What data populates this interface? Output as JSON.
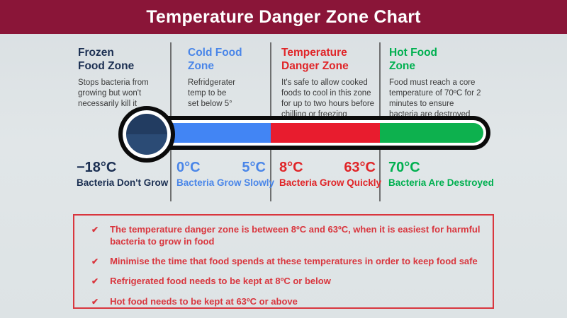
{
  "colors": {
    "header_bg": "#8A1538",
    "background": "#dde3e5",
    "navy": "#1b2f52",
    "blue": "#4a86e8",
    "red": "#e02528",
    "green": "#00b050",
    "tube_blue": "#4285f4",
    "tube_red": "#e81c2e",
    "tube_green": "#0db14e",
    "bulb_navy_top": "#223c61",
    "bulb_navy_bottom": "#2b4b75",
    "note_red": "#d9363e",
    "description_text": "#3b3b3b"
  },
  "header": {
    "title": "Temperature Danger Zone Chart"
  },
  "zones": [
    {
      "name": "frozen-food-zone",
      "title": "Frozen\nFood Zone",
      "description": "Stops bacteria from\ngrowing but won't\nnecessarily kill it",
      "temp_start": "−18°C",
      "temp_end": "",
      "caption": "Bacteria Don't Grow",
      "accent": "#1b2f52"
    },
    {
      "name": "cold-food-zone",
      "title": "Cold Food\nZone",
      "description": "Refridgerater\ntemp to be\nset below 5°",
      "temp_start": "0°C",
      "temp_end": "5°C",
      "caption": "Bacteria Grow Slowly",
      "accent": "#4a86e8"
    },
    {
      "name": "temperature-danger-zone",
      "title": "Temperature\nDanger Zone",
      "description": "It's safe to allow cooked\nfoods to cool in this zone\nfor up to two hours before\nchilling or freezing",
      "temp_start": "8°C",
      "temp_end": "63°C",
      "caption": "Bacteria Grow Quickly",
      "accent": "#e02528"
    },
    {
      "name": "hot-food-zone",
      "title": "Hot Food\nZone",
      "description": "Food must reach a core\ntemperature of 70ºC for 2\nminutes to ensure\nbacteria are destroyed",
      "temp_start": "70°C",
      "temp_end": "",
      "caption": "Bacteria Are Destroyed",
      "accent": "#00b050"
    }
  ],
  "thermometer": {
    "segments": [
      {
        "name": "cold",
        "color": "#4285f4"
      },
      {
        "name": "danger",
        "color": "#e81c2e"
      },
      {
        "name": "hot",
        "color": "#0db14e"
      }
    ]
  },
  "notes": [
    "The temperature danger zone is between 8ºC and 63ºC, when it is easiest for harmful bacteria to grow in food",
    "Minimise the time that food spends at these temperatures in order to keep food safe",
    "Refrigerated food needs to be kept at 8ºC or below",
    "Hot food needs to be kept at 63ºC or above"
  ],
  "icons": {
    "check": "✔"
  }
}
